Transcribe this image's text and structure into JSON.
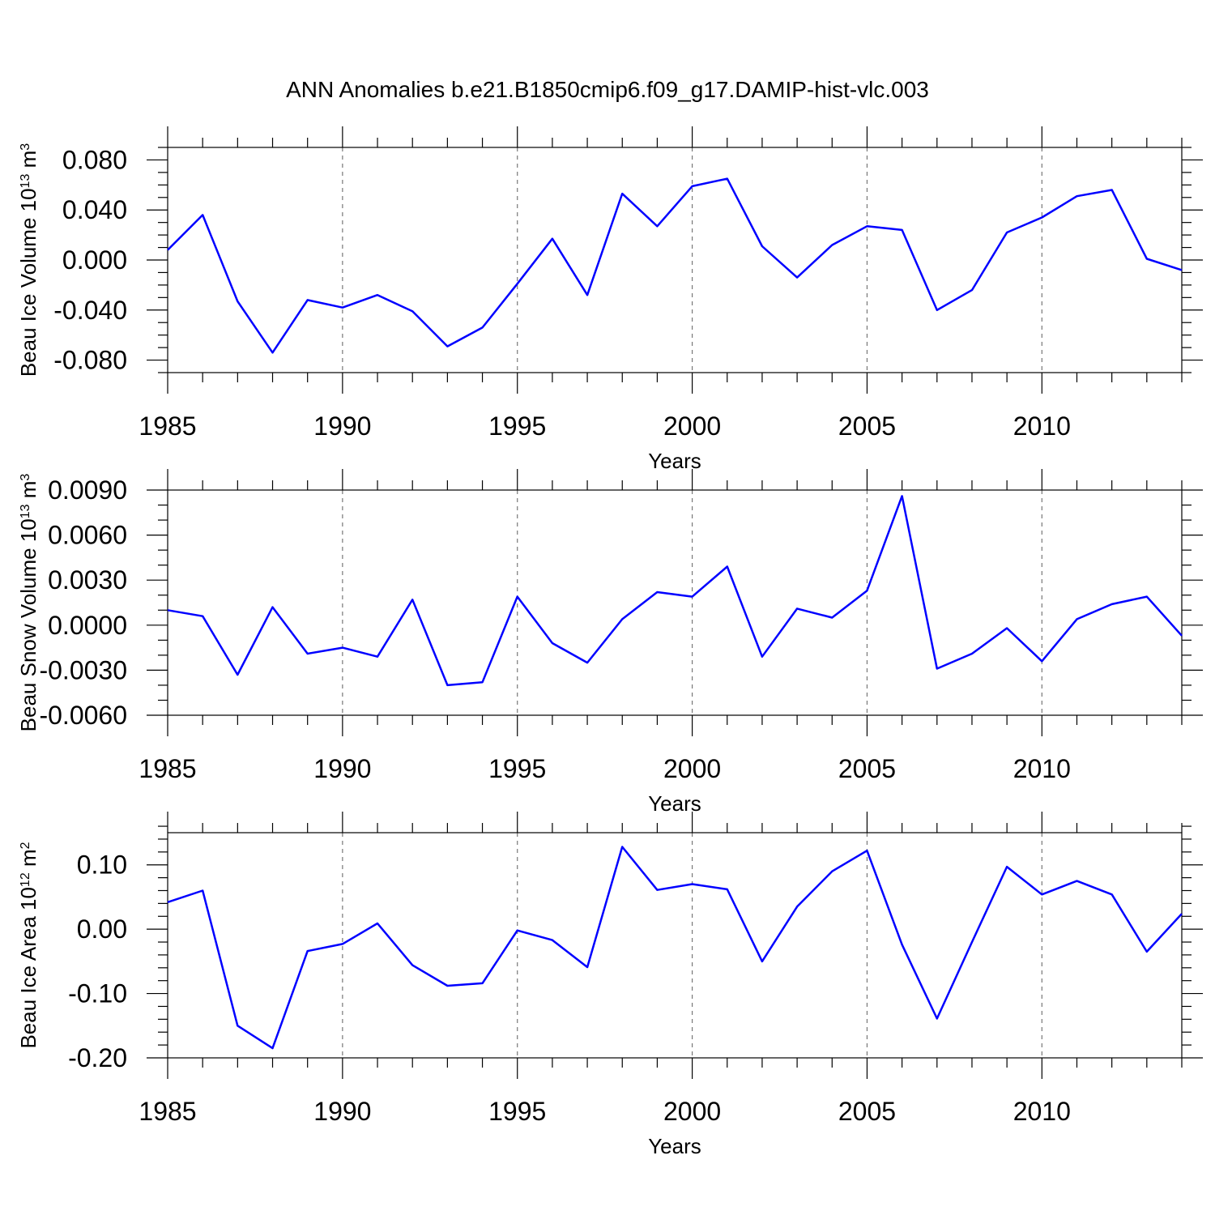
{
  "title": "ANN Anomalies b.e21.B1850cmip6.f09_g17.DAMIP-hist-vlc.003",
  "chart_data": [
    {
      "type": "line",
      "id": "ice-volume",
      "ylabel": {
        "text": "Beau Ice Volume 10",
        "sup": "13",
        "unit": " m",
        "unit_sup": "3"
      },
      "xlabel": "Years",
      "xlim": [
        1985,
        2014
      ],
      "ylim": [
        -0.09,
        0.09
      ],
      "yticks": [
        -0.08,
        -0.04,
        0.0,
        0.04,
        0.08
      ],
      "ytick_labels": [
        "-0.080",
        "-0.040",
        "0.000",
        "0.040",
        "0.080"
      ],
      "yminor_step": 0.01,
      "xticks": [
        1985,
        1990,
        1995,
        2000,
        2005,
        2010
      ],
      "xtick_labels": [
        "1985",
        "1990",
        "1995",
        "2000",
        "2005",
        "2010"
      ],
      "grid": "vertical dashed at major x ticks",
      "color": "#0000ff",
      "x": [
        1985,
        1986,
        1987,
        1988,
        1989,
        1990,
        1991,
        1992,
        1993,
        1994,
        1995,
        1996,
        1997,
        1998,
        1999,
        2000,
        2001,
        2002,
        2003,
        2004,
        2005,
        2006,
        2007,
        2008,
        2009,
        2010,
        2011,
        2012,
        2013,
        2014
      ],
      "values": [
        0.008,
        0.036,
        -0.033,
        -0.074,
        -0.032,
        -0.038,
        -0.028,
        -0.041,
        -0.069,
        -0.054,
        -0.019,
        0.017,
        -0.028,
        0.053,
        0.027,
        0.059,
        0.065,
        0.011,
        -0.014,
        0.012,
        0.027,
        0.024,
        -0.04,
        -0.024,
        0.022,
        0.034,
        0.051,
        0.056,
        0.001,
        -0.008
      ]
    },
    {
      "type": "line",
      "id": "snow-volume",
      "ylabel": {
        "text": "Beau Snow Volume 10",
        "sup": "13",
        "unit": " m",
        "unit_sup": "3"
      },
      "xlabel": "Years",
      "xlim": [
        1985,
        2014
      ],
      "ylim": [
        -0.006,
        0.009
      ],
      "yticks": [
        -0.006,
        -0.003,
        0.0,
        0.003,
        0.006,
        0.009
      ],
      "ytick_labels": [
        "-0.0060",
        "-0.0030",
        "0.0000",
        "0.0030",
        "0.0060",
        "0.0090"
      ],
      "yminor_step": 0.001,
      "xticks": [
        1985,
        1990,
        1995,
        2000,
        2005,
        2010
      ],
      "xtick_labels": [
        "1985",
        "1990",
        "1995",
        "2000",
        "2005",
        "2010"
      ],
      "grid": "vertical dashed at major x ticks",
      "color": "#0000ff",
      "x": [
        1985,
        1986,
        1987,
        1988,
        1989,
        1990,
        1991,
        1992,
        1993,
        1994,
        1995,
        1996,
        1997,
        1998,
        1999,
        2000,
        2001,
        2002,
        2003,
        2004,
        2005,
        2006,
        2007,
        2008,
        2009,
        2010,
        2011,
        2012,
        2013,
        2014
      ],
      "values": [
        0.001,
        0.0006,
        -0.0033,
        0.0012,
        -0.0019,
        -0.0015,
        -0.0021,
        0.0017,
        -0.004,
        -0.0038,
        0.0019,
        -0.0012,
        -0.0025,
        0.0004,
        0.0022,
        0.0019,
        0.0039,
        -0.0021,
        0.0011,
        0.0005,
        0.0023,
        0.0086,
        -0.0029,
        -0.0019,
        -0.0002,
        -0.0024,
        0.0004,
        0.0014,
        0.0019,
        -0.0007
      ]
    },
    {
      "type": "line",
      "id": "ice-area",
      "ylabel": {
        "text": "Beau Ice Area 10",
        "sup": "12",
        "unit": " m",
        "unit_sup": "2"
      },
      "xlabel": "Years",
      "xlim": [
        1985,
        2014
      ],
      "ylim": [
        -0.2,
        0.15
      ],
      "yticks": [
        -0.2,
        -0.1,
        0.0,
        0.1
      ],
      "ytick_labels": [
        "-0.20",
        "-0.10",
        "0.00",
        "0.10"
      ],
      "yminor_step": 0.02,
      "xticks": [
        1985,
        1990,
        1995,
        2000,
        2005,
        2010
      ],
      "xtick_labels": [
        "1985",
        "1990",
        "1995",
        "2000",
        "2005",
        "2010"
      ],
      "grid": "vertical dashed at major x ticks",
      "color": "#0000ff",
      "x": [
        1985,
        1986,
        1987,
        1988,
        1989,
        1990,
        1991,
        1992,
        1993,
        1994,
        1995,
        1996,
        1997,
        1998,
        1999,
        2000,
        2001,
        2002,
        2003,
        2004,
        2005,
        2006,
        2007,
        2008,
        2009,
        2010,
        2011,
        2012,
        2013,
        2014
      ],
      "values": [
        0.042,
        0.06,
        -0.15,
        -0.185,
        -0.034,
        -0.023,
        0.009,
        -0.056,
        -0.088,
        -0.084,
        -0.002,
        -0.017,
        -0.059,
        0.128,
        0.061,
        0.07,
        0.062,
        -0.05,
        0.035,
        0.09,
        0.122,
        -0.024,
        -0.139,
        -0.02,
        0.097,
        0.054,
        0.075,
        0.054,
        -0.035,
        0.024
      ]
    }
  ]
}
